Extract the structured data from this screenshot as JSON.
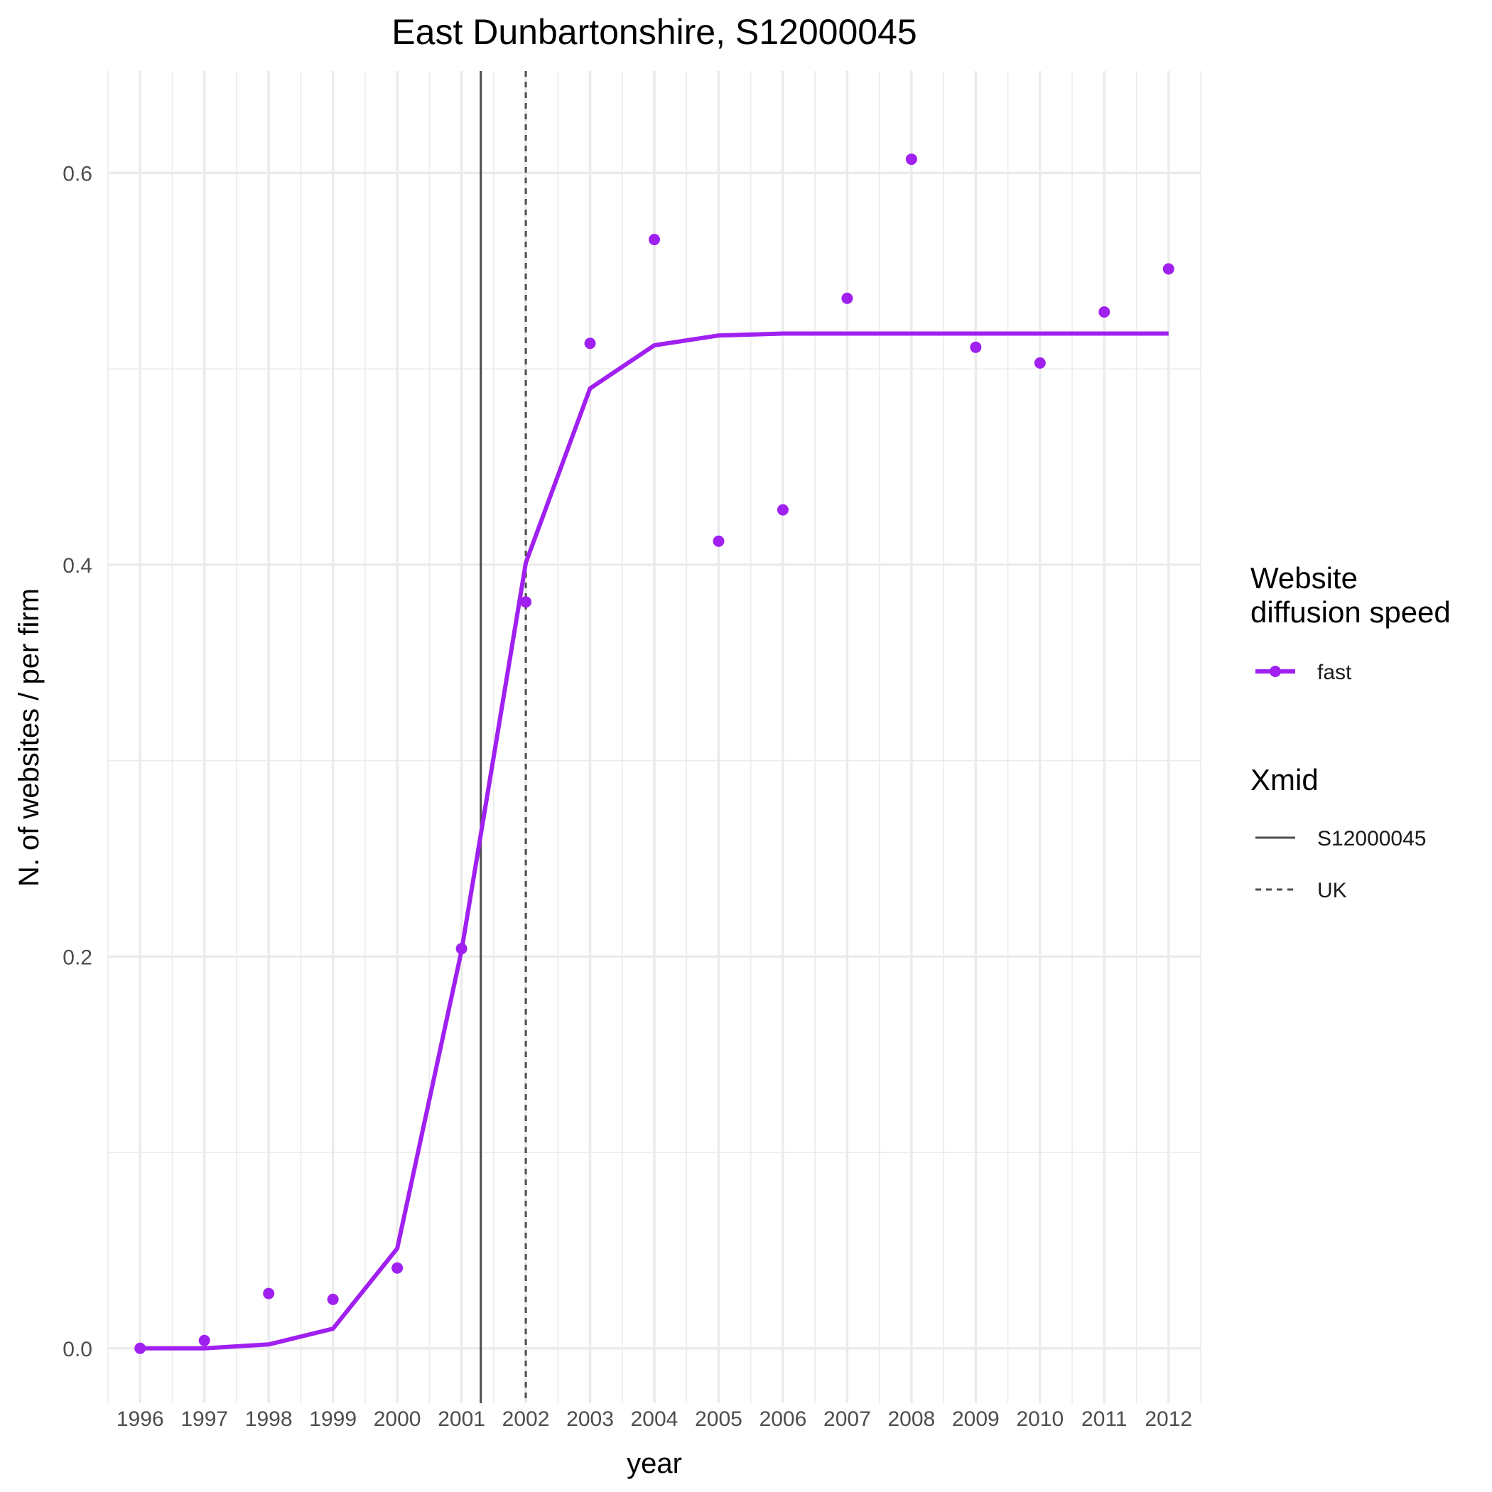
{
  "chart_data": {
    "type": "line",
    "title": "East Dunbartonshire, S12000045",
    "xlabel": "year",
    "ylabel": "N. of websites / per firm",
    "x": [
      1996,
      1997,
      1998,
      1999,
      2000,
      2001,
      2002,
      2003,
      2004,
      2005,
      2006,
      2007,
      2008,
      2009,
      2010,
      2011,
      2012
    ],
    "x_ticks": [
      "1996",
      "1997",
      "1998",
      "1999",
      "2000",
      "2001",
      "2002",
      "2003",
      "2004",
      "2005",
      "2006",
      "2007",
      "2008",
      "2009",
      "2010",
      "2011",
      "2012"
    ],
    "y_ticks": [
      "0.0",
      "0.2",
      "0.4",
      "0.6"
    ],
    "y_tick_values": [
      0.0,
      0.2,
      0.4,
      0.6
    ],
    "xlim": [
      1995.5,
      2012.5
    ],
    "ylim": [
      -0.028,
      0.652
    ],
    "grid": true,
    "series": [
      {
        "name": "fast",
        "color": "#a020f0",
        "points": [
          0.0,
          0.004,
          0.028,
          0.025,
          0.041,
          0.204,
          0.381,
          0.513,
          0.566,
          0.412,
          0.428,
          0.536,
          0.607,
          0.511,
          0.503,
          0.529,
          0.551
        ],
        "fitted": [
          0.0,
          0.0,
          0.002,
          0.01,
          0.051,
          0.203,
          0.401,
          0.49,
          0.512,
          0.517,
          0.518,
          0.518,
          0.518,
          0.518,
          0.518,
          0.518,
          0.518
        ]
      }
    ],
    "vlines": [
      {
        "name": "S12000045",
        "x": 2001.3,
        "style": "solid",
        "color": "#4d4d4d"
      },
      {
        "name": "UK",
        "x": 2002.0,
        "style": "dashed",
        "color": "#4d4d4d"
      }
    ],
    "legend": {
      "placement": "right",
      "groups": [
        {
          "title_lines": [
            "Website",
            "diffusion speed"
          ],
          "entries": [
            "fast"
          ]
        },
        {
          "title_lines": [
            "Xmid"
          ],
          "entries": [
            "S12000045",
            "UK"
          ]
        }
      ]
    }
  }
}
